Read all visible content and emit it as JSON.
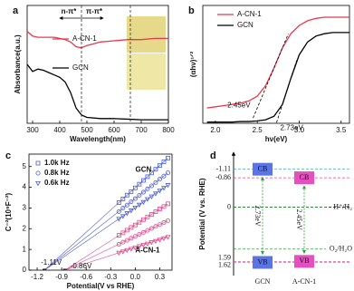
{
  "chart_data": [
    {
      "type": "line",
      "panel": "a",
      "xlabel": "Wavelength(nm)",
      "ylabel": "Absorbance(a.u.)",
      "x": [
        280,
        300,
        320,
        340,
        360,
        380,
        400,
        420,
        440,
        460,
        480,
        500,
        550,
        600,
        650,
        700,
        750,
        800
      ],
      "series": [
        {
          "name": "A-CN-1",
          "color": "#e8384f",
          "values": [
            0.78,
            0.74,
            0.73,
            0.73,
            0.73,
            0.73,
            0.72,
            0.71,
            0.69,
            0.65,
            0.64,
            0.66,
            0.69,
            0.7,
            0.71,
            0.71,
            0.72,
            0.72
          ]
        },
        {
          "name": "GCN",
          "color": "#000000",
          "values": [
            0.5,
            0.44,
            0.46,
            0.45,
            0.43,
            0.41,
            0.39,
            0.35,
            0.26,
            0.13,
            0.07,
            0.05,
            0.04,
            0.04,
            0.035,
            0.03,
            0.03,
            0.03
          ]
        }
      ],
      "xlim": [
        280,
        800
      ],
      "ylim": [
        0,
        1
      ],
      "xticks": [
        300,
        400,
        500,
        600,
        700,
        800
      ],
      "boundaries": [
        480,
        660
      ],
      "region_labels": [
        "n-π*",
        "π-π*"
      ]
    },
    {
      "type": "line",
      "panel": "b",
      "xlabel": "hν(eV)",
      "ylabel": "(αhν)¹ᐟ²",
      "x": [
        1.9,
        2.0,
        2.1,
        2.2,
        2.3,
        2.4,
        2.5,
        2.6,
        2.7,
        2.8,
        2.9,
        3.0,
        3.1,
        3.2,
        3.3,
        3.4,
        3.5,
        3.6
      ],
      "series": [
        {
          "name": "A-CN-1",
          "color": "#e8384f",
          "values": [
            0.13,
            0.14,
            0.15,
            0.16,
            0.17,
            0.19,
            0.23,
            0.32,
            0.47,
            0.64,
            0.76,
            0.83,
            0.87,
            0.89,
            0.9,
            0.9,
            0.9,
            0.9
          ]
        },
        {
          "name": "GCN",
          "color": "#000000",
          "values": [
            0.01,
            0.01,
            0.01,
            0.01,
            0.015,
            0.015,
            0.02,
            0.03,
            0.06,
            0.16,
            0.38,
            0.58,
            0.69,
            0.74,
            0.76,
            0.77,
            0.77,
            0.77
          ]
        }
      ],
      "xlim": [
        1.85,
        3.6
      ],
      "ylim": [
        0,
        1
      ],
      "xticks": [
        {
          "value": 2,
          "label": "2.0"
        },
        2.5,
        {
          "value": 3,
          "label": "3.0"
        },
        3.5
      ],
      "tangent_intercepts": [
        2.45,
        2.73
      ],
      "tangent_labels": [
        "2.45eV",
        "2.73eV"
      ]
    },
    {
      "type": "scatter",
      "panel": "c",
      "xlabel": "Potential(V vs RHE)",
      "ylabel": "C⁻²(10⁹F⁻²)",
      "x": [
        -0.2,
        -0.15,
        -0.1,
        -0.05,
        0,
        0.05,
        0.1,
        0.15,
        0.2,
        0.25,
        0.3,
        0.35,
        0.4
      ],
      "legend": [
        {
          "label": "1.0k Hz",
          "marker": "square"
        },
        {
          "label": "0.8k Hz",
          "marker": "circle"
        },
        {
          "label": "0.6k Hz",
          "marker": "triangle"
        }
      ],
      "legend_color": "#4a5bd4",
      "groups": [
        {
          "name": "GCN",
          "color": "#4a5bd4",
          "intercept": -1.11,
          "intercept_label": "-1.11V",
          "series": [
            {
              "values": [
                3.26,
                3.44,
                3.62,
                3.79,
                3.97,
                4.15,
                4.33,
                4.51,
                4.69,
                4.87,
                5.05,
                5.23,
                5.41
              ]
            },
            {
              "values": [
                2.83,
                2.99,
                3.14,
                3.3,
                3.45,
                3.61,
                3.76,
                3.92,
                4.07,
                4.23,
                4.39,
                4.54,
                4.7
              ]
            },
            {
              "values": [
                2.48,
                2.61,
                2.75,
                2.88,
                3.02,
                3.16,
                3.29,
                3.43,
                3.56,
                3.7,
                3.84,
                3.97,
                4.11
              ]
            }
          ]
        },
        {
          "name": "A-CN-1",
          "color": "#e0468a",
          "intercept": -0.86,
          "intercept_label": "-0.86V",
          "series": [
            {
              "values": [
                1.68,
                1.8,
                1.93,
                2.06,
                2.18,
                2.31,
                2.44,
                2.57,
                2.69,
                2.82,
                2.95,
                3.07,
                3.2
              ]
            },
            {
              "values": [
                1.25,
                1.35,
                1.44,
                1.54,
                1.63,
                1.73,
                1.82,
                1.92,
                2.01,
                2.11,
                2.2,
                2.3,
                2.39
              ]
            },
            {
              "values": [
                0.84,
                0.9,
                0.97,
                1.03,
                1.09,
                1.16,
                1.22,
                1.28,
                1.35,
                1.41,
                1.47,
                1.54,
                1.6
              ]
            }
          ]
        }
      ],
      "xlim": [
        -1.3,
        0.45
      ],
      "ylim": [
        0,
        5.6
      ],
      "xticks": [
        -1.2,
        -0.9,
        -0.6,
        -0.3,
        {
          "value": 0,
          "label": "0.0"
        },
        0.3
      ],
      "yticks": [
        0,
        1,
        2,
        3,
        4,
        5
      ]
    },
    {
      "type": "band",
      "panel": "d",
      "ylabel": "Potential (V vs. RHE)",
      "cb_label": "CB",
      "vb_label": "VB",
      "ylim": [
        -1.5,
        1.9
      ],
      "yticks": [
        -1.11,
        -0.86,
        0,
        1.59,
        1.62
      ],
      "ytick_colors": [
        "#2a9bb8",
        "#e040a0",
        "#000000",
        "#e040a0",
        "#2a9bb8"
      ],
      "materials": [
        {
          "name": "GCN",
          "cb": -1.11,
          "vb": 1.62,
          "gap_label": "2.73eV",
          "color": "#5a74e6"
        },
        {
          "name": "A-CN-1",
          "cb": -0.86,
          "vb": 1.59,
          "gap_label": "2.45eV",
          "color": "#e64fc0"
        }
      ],
      "levels": [
        {
          "value": 0,
          "label": "H⁺/H₂"
        },
        {
          "value": 1.23,
          "label": "O₂/H₂O"
        }
      ],
      "level_color": "#2e9e3e"
    }
  ]
}
